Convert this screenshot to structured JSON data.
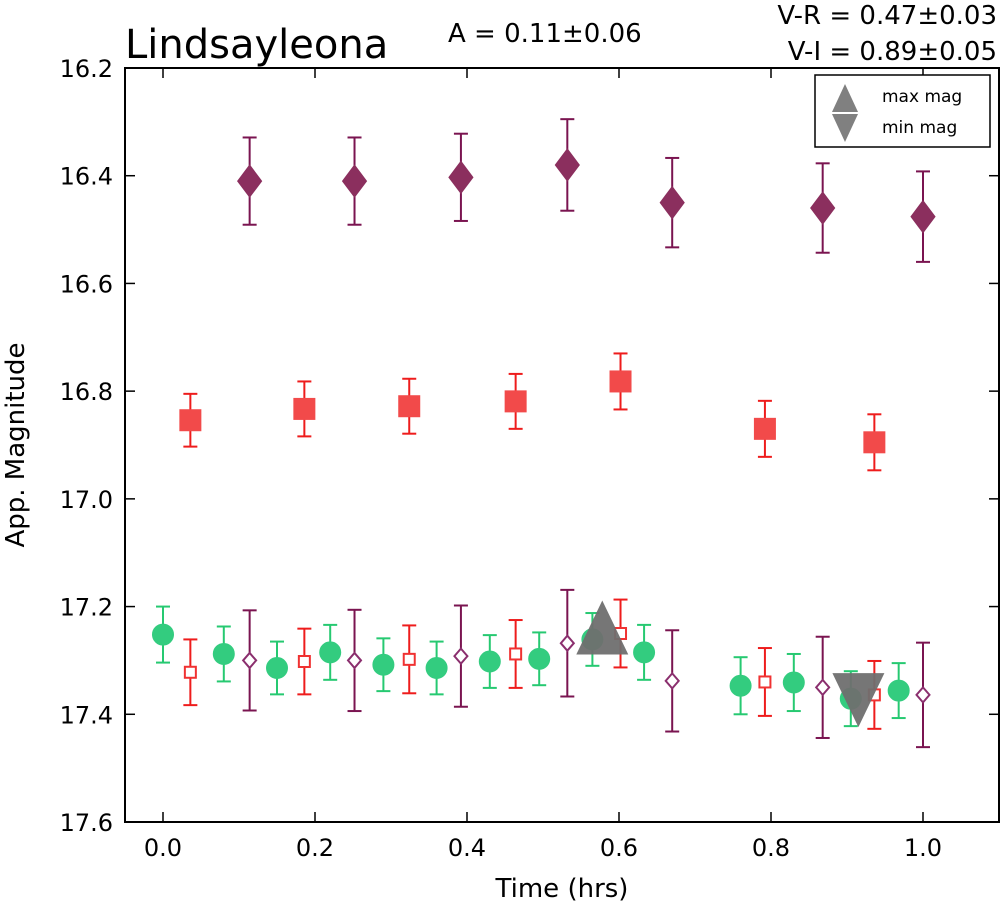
{
  "chart_data": {
    "type": "scatter",
    "title": "Lindsayleona",
    "annotations": {
      "amplitude": "A  = 0.11±0.06",
      "v_r": "V-R = 0.47±0.03",
      "v_i": "V-I  = 0.89±0.05"
    },
    "xlabel": "Time (hrs)",
    "ylabel": "App. Magnitude",
    "xlim": [
      -0.05,
      1.1
    ],
    "ylim": [
      17.6,
      16.2
    ],
    "y_inverted": true,
    "xticks": [
      "0.0",
      "0.2",
      "0.4",
      "0.6",
      "0.8",
      "1.0"
    ],
    "yticks": [
      "16.2",
      "16.4",
      "16.6",
      "16.8",
      "17.0",
      "17.2",
      "17.4",
      "17.6"
    ],
    "grid": false,
    "legend": {
      "placement": "top-right",
      "entries": [
        {
          "label": "max mag",
          "marker": "triangle-up",
          "color": "#808080"
        },
        {
          "label": "min mag",
          "marker": "triangle-down",
          "color": "#808080"
        }
      ]
    },
    "series": [
      {
        "marker": "diamond",
        "filled": true,
        "color": "#8b2f5e",
        "errcolor": "#7a1450",
        "points": [
          {
            "x": 0.114,
            "y": 16.41,
            "err": 0.081
          },
          {
            "x": 0.252,
            "y": 16.41,
            "err": 0.081
          },
          {
            "x": 0.392,
            "y": 16.403,
            "err": 0.081
          },
          {
            "x": 0.532,
            "y": 16.38,
            "err": 0.085
          },
          {
            "x": 0.67,
            "y": 16.45,
            "err": 0.083
          },
          {
            "x": 0.868,
            "y": 16.46,
            "err": 0.083
          },
          {
            "x": 1.0,
            "y": 16.476,
            "err": 0.084
          }
        ]
      },
      {
        "marker": "square",
        "filled": true,
        "color": "#f24a4a",
        "errcolor": "#ee1c1c",
        "points": [
          {
            "x": 0.036,
            "y": 16.854,
            "err": 0.049
          },
          {
            "x": 0.186,
            "y": 16.833,
            "err": 0.051
          },
          {
            "x": 0.324,
            "y": 16.828,
            "err": 0.051
          },
          {
            "x": 0.464,
            "y": 16.819,
            "err": 0.051
          },
          {
            "x": 0.602,
            "y": 16.782,
            "err": 0.052
          },
          {
            "x": 0.792,
            "y": 16.87,
            "err": 0.052
          },
          {
            "x": 0.936,
            "y": 16.895,
            "err": 0.052
          }
        ]
      },
      {
        "marker": "circle",
        "filled": true,
        "color": "#33cc7f",
        "errcolor": "#26c971",
        "points": [
          {
            "x": 0.0,
            "y": 17.252,
            "err": 0.052
          },
          {
            "x": 0.08,
            "y": 17.288,
            "err": 0.051
          },
          {
            "x": 0.15,
            "y": 17.314,
            "err": 0.049
          },
          {
            "x": 0.22,
            "y": 17.285,
            "err": 0.051
          },
          {
            "x": 0.29,
            "y": 17.308,
            "err": 0.049
          },
          {
            "x": 0.36,
            "y": 17.314,
            "err": 0.049
          },
          {
            "x": 0.43,
            "y": 17.302,
            "err": 0.049
          },
          {
            "x": 0.495,
            "y": 17.297,
            "err": 0.049
          },
          {
            "x": 0.565,
            "y": 17.261,
            "err": 0.049
          },
          {
            "x": 0.633,
            "y": 17.285,
            "err": 0.051
          },
          {
            "x": 0.76,
            "y": 17.347,
            "err": 0.053
          },
          {
            "x": 0.83,
            "y": 17.341,
            "err": 0.053
          },
          {
            "x": 0.905,
            "y": 17.371,
            "err": 0.051
          },
          {
            "x": 0.968,
            "y": 17.356,
            "err": 0.051
          }
        ]
      },
      {
        "marker": "square",
        "filled": false,
        "color": "#f03232",
        "errcolor": "#ee1c1c",
        "points": [
          {
            "x": 0.036,
            "y": 17.322,
            "err": 0.061
          },
          {
            "x": 0.186,
            "y": 17.302,
            "err": 0.061
          },
          {
            "x": 0.324,
            "y": 17.298,
            "err": 0.063
          },
          {
            "x": 0.464,
            "y": 17.288,
            "err": 0.063
          },
          {
            "x": 0.602,
            "y": 17.25,
            "err": 0.063
          },
          {
            "x": 0.792,
            "y": 17.34,
            "err": 0.063
          },
          {
            "x": 0.936,
            "y": 17.364,
            "err": 0.063
          }
        ]
      },
      {
        "marker": "diamond",
        "filled": false,
        "color": "#8b2f6e",
        "errcolor": "#7a1450",
        "points": [
          {
            "x": 0.114,
            "y": 17.3,
            "err": 0.093
          },
          {
            "x": 0.252,
            "y": 17.3,
            "err": 0.094
          },
          {
            "x": 0.392,
            "y": 17.292,
            "err": 0.094
          },
          {
            "x": 0.532,
            "y": 17.268,
            "err": 0.099
          },
          {
            "x": 0.67,
            "y": 17.338,
            "err": 0.094
          },
          {
            "x": 0.868,
            "y": 17.35,
            "err": 0.094
          },
          {
            "x": 1.0,
            "y": 17.364,
            "err": 0.097
          }
        ]
      }
    ],
    "extrema": [
      {
        "kind": "max",
        "x": 0.578,
        "y": 17.25,
        "color": "#6f6f6f"
      },
      {
        "kind": "min",
        "x": 0.915,
        "y": 17.37,
        "color": "#6f6f6f"
      }
    ]
  }
}
